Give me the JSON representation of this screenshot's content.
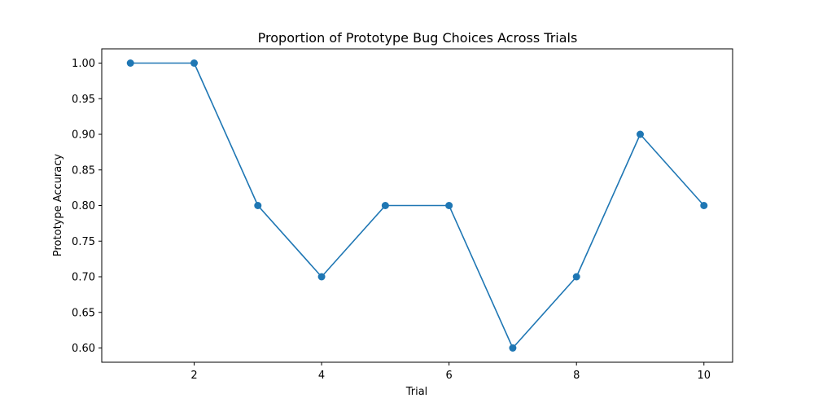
{
  "chart_data": {
    "type": "line",
    "title": "Proportion of Prototype Bug Choices Across Trials",
    "xlabel": "Trial",
    "ylabel": "Prototype Accuracy",
    "x": [
      1,
      2,
      3,
      4,
      5,
      6,
      7,
      8,
      9,
      10
    ],
    "series": [
      {
        "values": [
          1.0,
          1.0,
          0.8,
          0.7,
          0.8,
          0.8,
          0.6,
          0.7,
          0.9,
          0.8
        ],
        "color": "#1f77b4",
        "marker": "circle"
      }
    ],
    "xlim": [
      0.55,
      10.45
    ],
    "ylim": [
      0.58,
      1.02
    ],
    "xticks": [
      2,
      4,
      6,
      8,
      10
    ],
    "xtick_labels": [
      "2",
      "4",
      "6",
      "8",
      "10"
    ],
    "yticks": [
      0.6,
      0.65,
      0.7,
      0.75,
      0.8,
      0.85,
      0.9,
      0.95,
      1.0
    ],
    "ytick_labels": [
      "0.60",
      "0.65",
      "0.70",
      "0.75",
      "0.80",
      "0.85",
      "0.90",
      "0.95",
      "1.00"
    ],
    "grid": false,
    "legend": "none"
  }
}
